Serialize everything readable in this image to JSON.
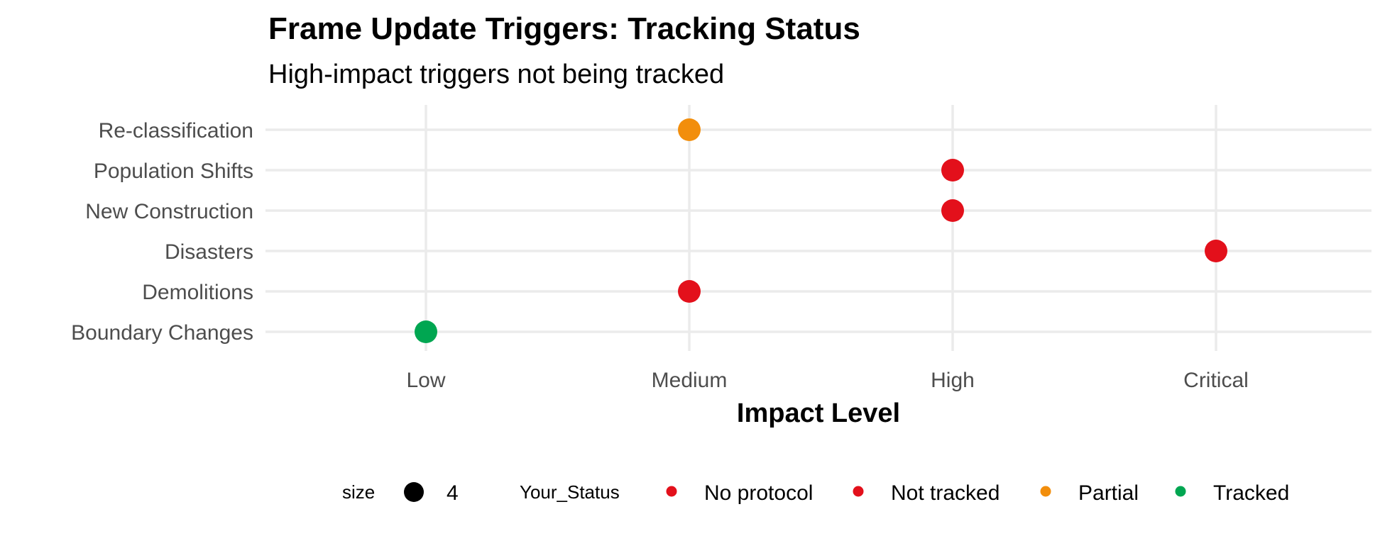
{
  "chart_data": {
    "type": "scatter",
    "title": "Frame Update Triggers: Tracking Status",
    "subtitle": "High-impact triggers not being tracked",
    "xlabel": "Impact Level",
    "ylabel": "",
    "x_categories": [
      "Low",
      "Medium",
      "High",
      "Critical"
    ],
    "y_categories": [
      "Boundary Changes",
      "Demolitions",
      "Disasters",
      "New Construction",
      "Population Shifts",
      "Re-classification"
    ],
    "points": [
      {
        "trigger": "Re-classification",
        "impact": "Medium",
        "status": "Partial"
      },
      {
        "trigger": "Population Shifts",
        "impact": "High",
        "status": "Not tracked"
      },
      {
        "trigger": "New Construction",
        "impact": "High",
        "status": "Not tracked"
      },
      {
        "trigger": "Disasters",
        "impact": "Critical",
        "status": "Not tracked"
      },
      {
        "trigger": "Demolitions",
        "impact": "Medium",
        "status": "Not tracked"
      },
      {
        "trigger": "Boundary Changes",
        "impact": "Low",
        "status": "Tracked"
      }
    ],
    "legend": {
      "position": "bottom",
      "size_title": "size",
      "size_value": "4",
      "color_title": "Your_Status",
      "entries": [
        {
          "label": "No protocol",
          "color": "#e3101b"
        },
        {
          "label": "Not tracked",
          "color": "#e3101b"
        },
        {
          "label": "Partial",
          "color": "#f28e0c"
        },
        {
          "label": "Tracked",
          "color": "#00a651"
        }
      ]
    },
    "grid": true
  }
}
